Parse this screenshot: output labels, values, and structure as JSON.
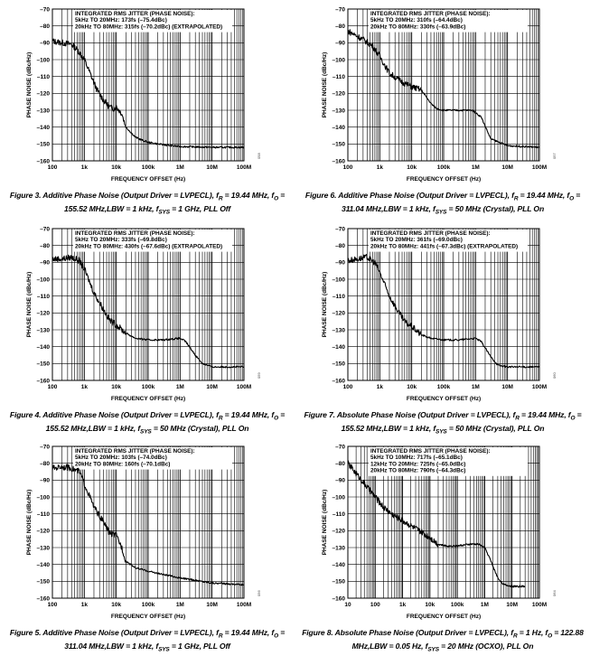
{
  "chart_data": [
    {
      "type": "line",
      "figure_caption": {
        "lead": "Figure 3. Additive Phase Noise (Output Driver = LVPECL), f",
        "r_sub": "R",
        "mid1": " = 19.44 MHz, f",
        "o_sub": "O",
        "mid2": " = 155.52 MHz,LBW = 1 kHz, f",
        "sys_sub": "SYS",
        "tail": " = 1 GHz, PLL Off"
      },
      "annotation": [
        "INTEGRATED RMS JITTER (PHASE NOISE):",
        "5kHz TO 20MHz: 173fs (–75.4dBc)",
        "20kHz TO 80MHz: 315fs (–70.2dBc) (EXTRAPOLATED)"
      ],
      "xlabel": "FREQUENCY OFFSET (Hz)",
      "ylabel": "PHASE NOISE (dBc/Hz)",
      "xlim": [
        100,
        100000000
      ],
      "ylim": [
        -160,
        -70
      ],
      "xticklabels": [
        "100",
        "1k",
        "10k",
        "100k",
        "1M",
        "10M",
        "100M"
      ],
      "yticklabels": [
        "–70",
        "–80",
        "–90",
        "–100",
        "–110",
        "–120",
        "–130",
        "–140",
        "–150",
        "–160"
      ],
      "fig_id": "058",
      "series": [
        {
          "x": [
            100,
            200,
            400,
            600,
            1000,
            1500,
            2500,
            4000,
            6000,
            8000,
            10000,
            15000,
            20000,
            40000,
            70000,
            100000,
            200000,
            500000,
            1000000,
            10000000,
            100000000
          ],
          "y": [
            -89,
            -90,
            -91,
            -94,
            -100,
            -108,
            -118,
            -124,
            -128,
            -129,
            -128,
            -132,
            -140,
            -146,
            -148,
            -149,
            -150,
            -151,
            -151.5,
            -152,
            -152
          ]
        }
      ]
    },
    {
      "type": "line",
      "figure_caption": {
        "lead": "Figure 6. Additive Phase Noise (Output Driver = LVPECL), f",
        "r_sub": "R",
        "mid1": " = 19.44 MHz, f",
        "o_sub": "O",
        "mid2": " = 311.04 MHz,LBW = 1 kHz, f",
        "sys_sub": "SYS",
        "tail": " = 50 MHz (Crystal), PLL On"
      },
      "annotation": [
        "INTEGRATED RMS JITTER (PHASE NOISE):",
        "5kHz TO 20MHz: 310fs (–64.4dBc)",
        "20kHz TO 80MHz: 330fs (–63.9dBc)"
      ],
      "xlabel": "FREQUENCY OFFSET (Hz)",
      "ylabel": "PHASE NOISE (dBc/Hz)",
      "xlim": [
        100,
        100000000
      ],
      "ylim": [
        -160,
        -70
      ],
      "xticklabels": [
        "100",
        "1k",
        "10k",
        "100k",
        "1M",
        "10M",
        "100M"
      ],
      "yticklabels": [
        "–70",
        "–80",
        "–90",
        "–100",
        "–110",
        "–120",
        "–130",
        "–140",
        "–150",
        "–160"
      ],
      "fig_id": "057",
      "series": [
        {
          "x": [
            100,
            300,
            600,
            1000,
            2000,
            4000,
            6000,
            10000,
            20000,
            40000,
            60000,
            100000,
            200000,
            500000,
            800000,
            1500000,
            3000000,
            10000000,
            100000000
          ],
          "y": [
            -83,
            -88,
            -92,
            -98,
            -108,
            -112,
            -114,
            -116,
            -118,
            -126,
            -129,
            -130,
            -130,
            -130,
            -130,
            -134,
            -147,
            -151,
            -152
          ]
        }
      ]
    },
    {
      "type": "line",
      "figure_caption": {
        "lead": "Figure 4. Additive Phase Noise (Output Driver = LVPECL), f",
        "r_sub": "R",
        "mid1": " = 19.44 MHz, f",
        "o_sub": "O",
        "mid2": " = 155.52 MHz,LBW = 1 kHz, f",
        "sys_sub": "SYS",
        "tail": " = 50 MHz (Crystal), PLL On"
      },
      "annotation": [
        "INTEGRATED RMS JITTER (PHASE NOISE):",
        "5kHz TO 20MHz: 333fs (–69.8dBc)",
        "20kHz TO 80MHz: 430fs (–67.6dBc) (EXTRAPOLATED)"
      ],
      "xlabel": "FREQUENCY OFFSET (Hz)",
      "ylabel": "PHASE NOISE (dBc/Hz)",
      "xlim": [
        100,
        100000000
      ],
      "ylim": [
        -160,
        -70
      ],
      "xticklabels": [
        "100",
        "1k",
        "10k",
        "100k",
        "1M",
        "10M",
        "100M"
      ],
      "yticklabels": [
        "–70",
        "–80",
        "–90",
        "–100",
        "–110",
        "–120",
        "–130",
        "–140",
        "–150",
        "–160"
      ],
      "fig_id": "059",
      "series": [
        {
          "x": [
            100,
            200,
            400,
            700,
            1000,
            2000,
            4000,
            6000,
            10000,
            20000,
            40000,
            100000,
            300000,
            1000000,
            1500000,
            3000000,
            5000000,
            10000000,
            100000000
          ],
          "y": [
            -88,
            -88,
            -87,
            -89,
            -94,
            -108,
            -118,
            -124,
            -127,
            -132,
            -135,
            -136,
            -136,
            -135,
            -137,
            -145,
            -150,
            -152,
            -152
          ]
        }
      ]
    },
    {
      "type": "line",
      "figure_caption": {
        "lead": "Figure 7. Absolute Phase Noise (Output Driver = LVPECL), f",
        "r_sub": "R",
        "mid1": " = 19.44 MHz, f",
        "o_sub": "O",
        "mid2": " = 155.52 MHz,LBW = 1 kHz, f",
        "sys_sub": "SYS",
        "tail": " = 50 MHz (Crystal), PLL On"
      },
      "annotation": [
        "INTEGRATED RMS JITTER (PHASE NOISE):",
        "5kHz TO 20MHz: 361fs (–69.0dBc)",
        "20kHz TO 80MHz: 441fs (–67.3dBc) (EXTRAPOLATED)"
      ],
      "xlabel": "FREQUENCY OFFSET (Hz)",
      "ylabel": "PHASE NOISE (dBc/Hz)",
      "xlim": [
        100,
        100000000
      ],
      "ylim": [
        -160,
        -70
      ],
      "xticklabels": [
        "100",
        "1k",
        "10k",
        "100k",
        "1M",
        "10M",
        "100M"
      ],
      "yticklabels": [
        "–70",
        "–80",
        "–90",
        "–100",
        "–110",
        "–120",
        "–130",
        "–140",
        "–150",
        "–160"
      ],
      "fig_id": "060",
      "series": [
        {
          "x": [
            100,
            200,
            400,
            700,
            1000,
            2000,
            4000,
            6000,
            10000,
            20000,
            40000,
            100000,
            300000,
            1000000,
            1500000,
            3000000,
            5000000,
            10000000,
            100000000
          ],
          "y": [
            -89,
            -88,
            -87,
            -90,
            -96,
            -110,
            -120,
            -125,
            -128,
            -133,
            -135,
            -136,
            -136,
            -135,
            -137,
            -146,
            -151,
            -152,
            -152
          ]
        }
      ]
    },
    {
      "type": "line",
      "figure_caption": {
        "lead": "Figure 5. Additive Phase Noise (Output Driver = LVPECL), f",
        "r_sub": "R",
        "mid1": " = 19.44 MHz, f",
        "o_sub": "O",
        "mid2": " = 311.04 MHz,LBW = 1 kHz, f",
        "sys_sub": "SYS",
        "tail": " = 1 GHz, PLL Off"
      },
      "annotation": [
        "INTEGRATED RMS JITTER (PHASE NOISE):",
        "5kHz TO 20MHz: 103fs (–74.0dBc)",
        "20kHz TO 80MHz: 160fs (–70.1dBc)"
      ],
      "xlabel": "FREQUENCY OFFSET (Hz)",
      "ylabel": "PHASE NOISE (dBc/Hz)",
      "xlim": [
        100,
        100000000
      ],
      "ylim": [
        -160,
        -70
      ],
      "xticklabels": [
        "100",
        "1k",
        "10k",
        "100k",
        "1M",
        "10M",
        "100M"
      ],
      "yticklabels": [
        "–70",
        "–80",
        "–90",
        "–100",
        "–110",
        "–120",
        "–130",
        "–140",
        "–150",
        "–160"
      ],
      "fig_id": "056",
      "series": [
        {
          "x": [
            100,
            200,
            400,
            700,
            1000,
            2000,
            4000,
            6000,
            10000,
            15000,
            20000,
            40000,
            100000,
            300000,
            1000000,
            10000000,
            100000000
          ],
          "y": [
            -83,
            -82,
            -83,
            -85,
            -92,
            -106,
            -115,
            -121,
            -123,
            -130,
            -138,
            -142,
            -144,
            -146,
            -148,
            -151,
            -152
          ]
        }
      ]
    },
    {
      "type": "line",
      "figure_caption": {
        "lead": "Figure 8. Absolute Phase Noise (Output Driver = LVPECL), f",
        "r_sub": "R",
        "mid1": " = 1 Hz, f",
        "o_sub": "O",
        "mid2": " = 122.88 MHz,LBW = 0.05 Hz, f",
        "sys_sub": "SYS",
        "tail": " = 20 MHz (OCXO), PLL On"
      },
      "annotation": [
        "INTEGRATED RMS JITTER (PHASE NOISE):",
        "5kHz TO 10MHz: 717fs (–65.1dBc)",
        "12kHz TO 20MHz: 725fs (–65.0dBc)",
        "20kHz TO 80MHz: 790fs (–64.3dBc)"
      ],
      "xlabel": "FREQUENCY OFFSET (Hz)",
      "ylabel": "PHASE NOISE (dBc/Hz)",
      "xlim": [
        10,
        100000000
      ],
      "ylim": [
        -160,
        -70
      ],
      "xticklabels": [
        "10",
        "100",
        "1k",
        "10k",
        "100k",
        "1M",
        "10M",
        "100M"
      ],
      "yticklabels": [
        "–70",
        "–80",
        "–90",
        "–100",
        "–110",
        "–120",
        "–130",
        "–140",
        "–150",
        "–160"
      ],
      "fig_id": "064",
      "series": [
        {
          "x": [
            10,
            20,
            40,
            70,
            100,
            200,
            400,
            1000,
            2000,
            4000,
            10000,
            20000,
            40000,
            100000,
            300000,
            600000,
            1000000,
            1500000,
            3000000,
            5000000,
            10000000,
            30000000
          ],
          "y": [
            -80,
            -86,
            -92,
            -97,
            -100,
            -106,
            -110,
            -114,
            -117,
            -120,
            -124,
            -128,
            -129,
            -129,
            -128,
            -128,
            -130,
            -136,
            -148,
            -152,
            -153,
            -153
          ]
        }
      ]
    }
  ]
}
